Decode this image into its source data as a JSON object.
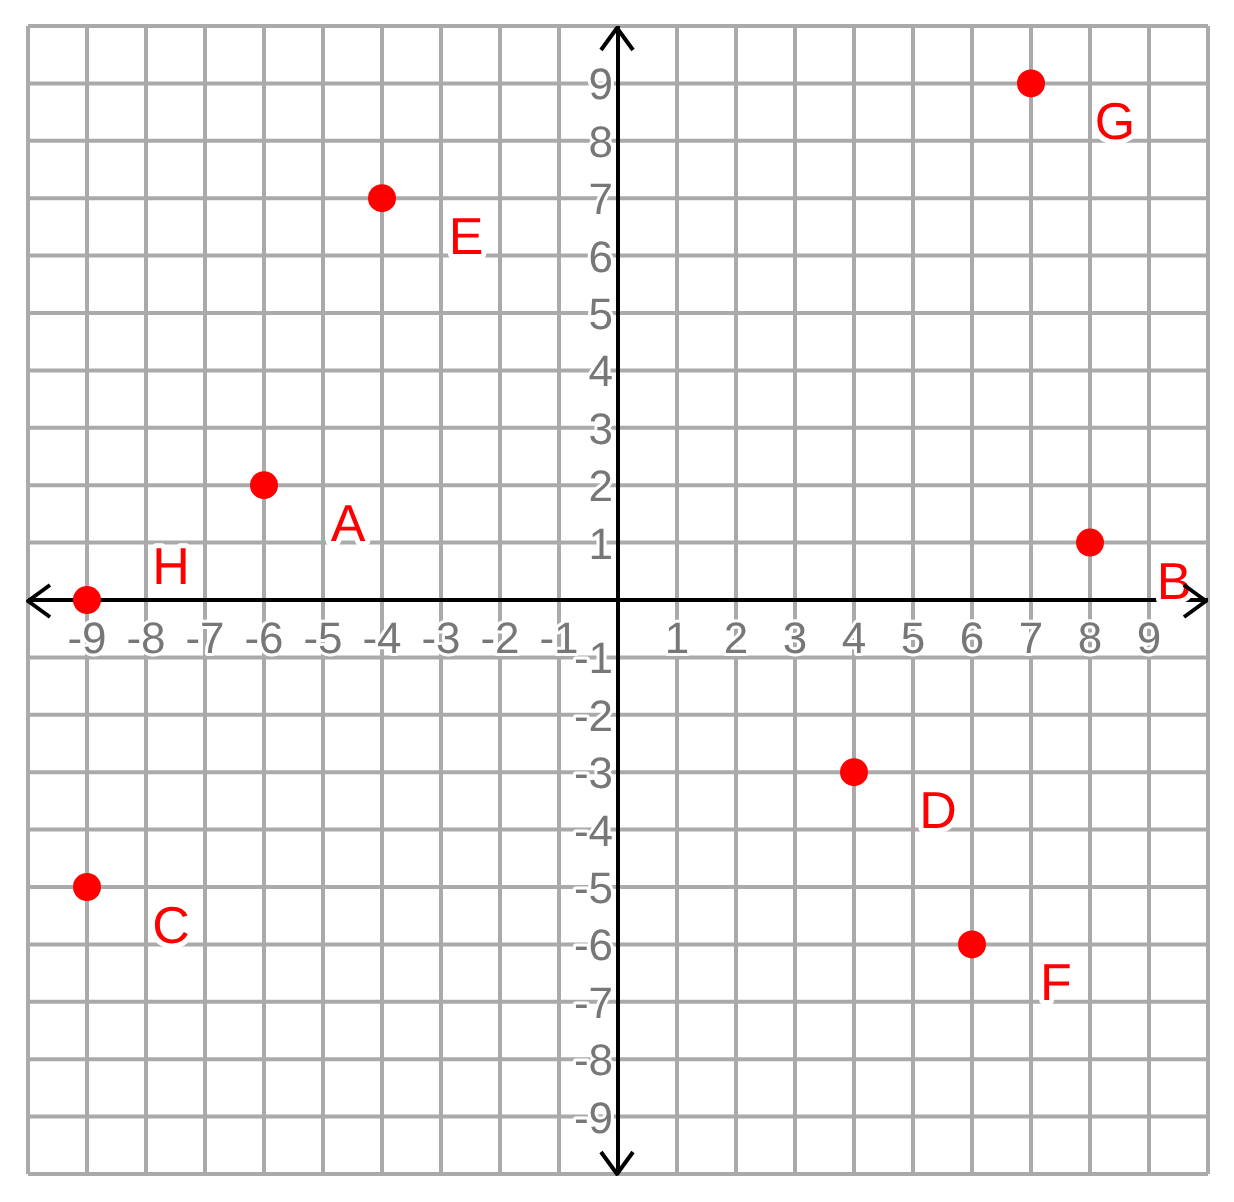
{
  "chart_data": {
    "type": "scatter",
    "xlim": [
      -10,
      10
    ],
    "ylim": [
      -10,
      10
    ],
    "xticks": [
      {
        "value": -10,
        "label": null
      },
      -9,
      -8,
      -7,
      -6,
      -5,
      -4,
      -3,
      -2,
      -1,
      {
        "value": 0,
        "label": null
      },
      1,
      2,
      3,
      4,
      5,
      6,
      7,
      8,
      9,
      {
        "value": 10,
        "label": null
      }
    ],
    "yticks": [
      {
        "value": -10,
        "label": null
      },
      -9,
      -8,
      -7,
      -6,
      -5,
      -4,
      -3,
      -2,
      -1,
      {
        "value": 0,
        "label": null
      },
      1,
      2,
      3,
      4,
      5,
      6,
      7,
      8,
      9,
      {
        "value": 10,
        "label": null
      }
    ],
    "grid": true,
    "marker": "circle",
    "series": [
      {
        "color": "#ff0000",
        "x": [
          -6,
          8,
          -9,
          4,
          -4,
          6,
          7,
          -9
        ],
        "values": [
          2,
          1,
          -5,
          -3,
          7,
          -6,
          9,
          0
        ]
      }
    ],
    "annotations": [
      {
        "text": "A",
        "x": -6,
        "y": 2
      },
      {
        "text": "B",
        "x": 8,
        "y": 1
      },
      {
        "text": "C",
        "x": -9,
        "y": -5
      },
      {
        "text": "D",
        "x": 4,
        "y": -3
      },
      {
        "text": "E",
        "x": -4,
        "y": 7
      },
      {
        "text": "F",
        "x": 6,
        "y": -6
      },
      {
        "text": "G",
        "x": 7,
        "y": 9
      },
      {
        "text": "H",
        "x": -9,
        "y": 0
      }
    ]
  }
}
